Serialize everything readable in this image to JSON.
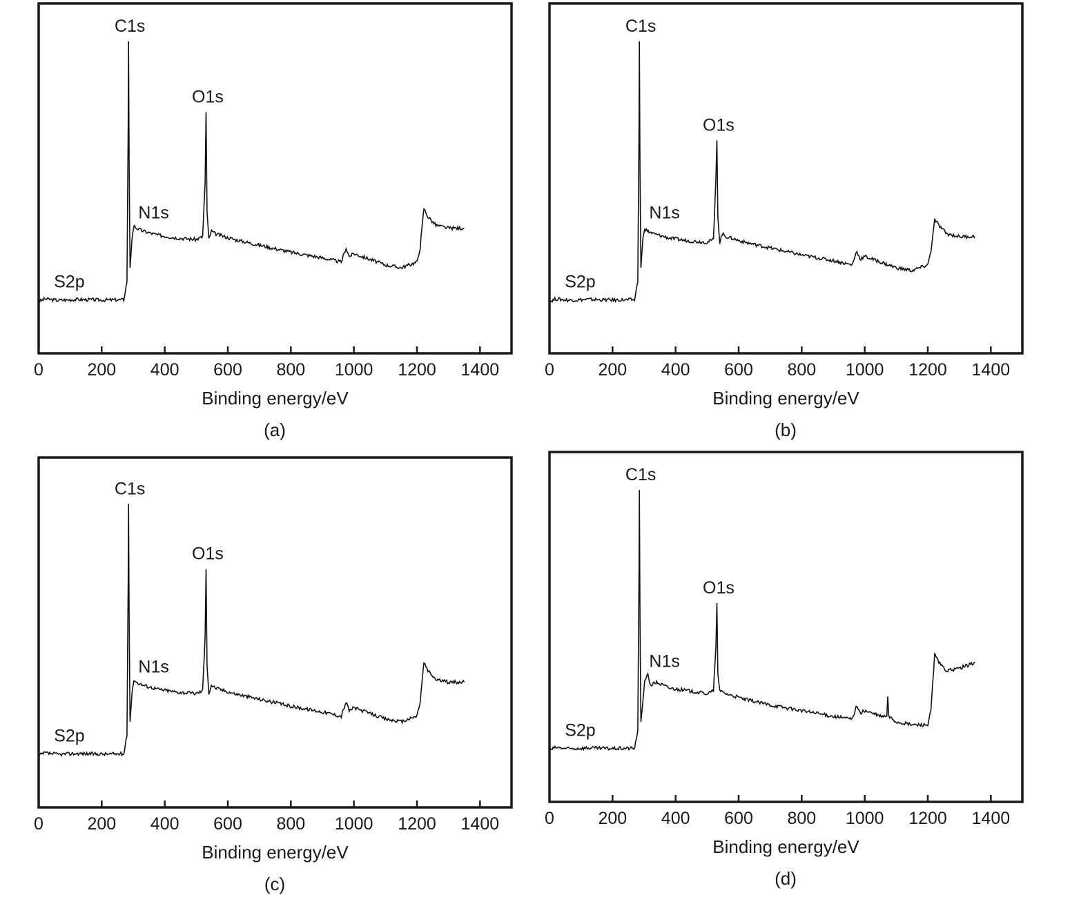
{
  "chart_data": [
    {
      "type": "line",
      "caption": "(a)",
      "xlabel": "Binding energy/eV",
      "ylabel": "",
      "xlim": [
        0,
        1500
      ],
      "xticks": [
        0,
        200,
        400,
        600,
        800,
        1000,
        1200,
        1400
      ],
      "grid": false,
      "legend": "none",
      "annotations": [
        {
          "text": "S2p",
          "x": 163
        },
        {
          "text": "C1s",
          "x": 285
        },
        {
          "text": "N1s",
          "x": 400
        },
        {
          "text": "O1s",
          "x": 532
        }
      ],
      "series": [
        {
          "x": [
            0,
            20,
            60,
            120,
            200,
            270,
            280,
            284,
            285,
            287,
            290,
            296,
            302,
            310,
            330,
            380,
            440,
            500,
            520,
            528,
            531,
            534,
            540,
            548,
            560,
            620,
            700,
            800,
            900,
            960,
            975,
            985,
            1000,
            1050,
            1100,
            1150,
            1200,
            1210,
            1222,
            1235,
            1260,
            1300,
            1350
          ],
          "y": [
            0.08,
            0.09,
            0.085,
            0.088,
            0.086,
            0.087,
            0.15,
            0.7,
            1.0,
            0.55,
            0.2,
            0.3,
            0.35,
            0.34,
            0.33,
            0.315,
            0.305,
            0.3,
            0.31,
            0.5,
            0.75,
            0.4,
            0.3,
            0.33,
            0.32,
            0.3,
            0.28,
            0.255,
            0.235,
            0.22,
            0.27,
            0.24,
            0.25,
            0.23,
            0.21,
            0.2,
            0.22,
            0.27,
            0.41,
            0.38,
            0.35,
            0.34,
            0.34
          ]
        }
      ]
    },
    {
      "type": "line",
      "caption": "(b)",
      "xlabel": "Binding energy/eV",
      "ylabel": "",
      "xlim": [
        0,
        1500
      ],
      "xticks": [
        0,
        200,
        400,
        600,
        800,
        1000,
        1200,
        1400
      ],
      "grid": false,
      "legend": "none",
      "annotations": [
        {
          "text": "S2p",
          "x": 163
        },
        {
          "text": "C1s",
          "x": 285
        },
        {
          "text": "N1s",
          "x": 400
        },
        {
          "text": "O1s",
          "x": 532
        }
      ],
      "series": [
        {
          "x": [
            0,
            20,
            60,
            120,
            200,
            270,
            280,
            284,
            285,
            287,
            290,
            296,
            302,
            310,
            330,
            380,
            440,
            500,
            520,
            528,
            531,
            534,
            540,
            548,
            560,
            620,
            700,
            800,
            900,
            960,
            975,
            985,
            1000,
            1050,
            1100,
            1150,
            1200,
            1210,
            1222,
            1235,
            1260,
            1300,
            1350
          ],
          "y": [
            0.08,
            0.09,
            0.085,
            0.088,
            0.086,
            0.087,
            0.15,
            0.7,
            1.0,
            0.55,
            0.2,
            0.3,
            0.34,
            0.33,
            0.32,
            0.305,
            0.295,
            0.29,
            0.3,
            0.52,
            0.65,
            0.38,
            0.29,
            0.32,
            0.31,
            0.29,
            0.27,
            0.245,
            0.225,
            0.21,
            0.26,
            0.23,
            0.24,
            0.22,
            0.2,
            0.19,
            0.21,
            0.26,
            0.37,
            0.35,
            0.32,
            0.31,
            0.31
          ]
        }
      ]
    },
    {
      "type": "line",
      "caption": "(c)",
      "xlabel": "Binding energy/eV",
      "ylabel": "",
      "xlim": [
        0,
        1500
      ],
      "xticks": [
        0,
        200,
        400,
        600,
        800,
        1000,
        1200,
        1400
      ],
      "grid": false,
      "legend": "none",
      "annotations": [
        {
          "text": "S2p",
          "x": 163
        },
        {
          "text": "C1s",
          "x": 285
        },
        {
          "text": "N1s",
          "x": 400
        },
        {
          "text": "O1s",
          "x": 532
        }
      ],
      "series": [
        {
          "x": [
            0,
            20,
            60,
            120,
            200,
            270,
            280,
            284,
            285,
            287,
            290,
            296,
            302,
            310,
            330,
            380,
            440,
            500,
            520,
            528,
            531,
            534,
            540,
            548,
            560,
            620,
            700,
            800,
            900,
            960,
            975,
            985,
            1000,
            1050,
            1100,
            1150,
            1200,
            1210,
            1222,
            1235,
            1260,
            1300,
            1350
          ],
          "y": [
            0.08,
            0.09,
            0.085,
            0.088,
            0.086,
            0.087,
            0.15,
            0.7,
            0.97,
            0.55,
            0.2,
            0.3,
            0.35,
            0.34,
            0.33,
            0.315,
            0.305,
            0.3,
            0.31,
            0.5,
            0.74,
            0.4,
            0.3,
            0.33,
            0.32,
            0.3,
            0.28,
            0.255,
            0.235,
            0.22,
            0.27,
            0.24,
            0.25,
            0.23,
            0.21,
            0.2,
            0.22,
            0.27,
            0.41,
            0.38,
            0.35,
            0.34,
            0.34
          ]
        }
      ]
    },
    {
      "type": "line",
      "caption": "(d)",
      "xlabel": "Binding energy/eV",
      "ylabel": "",
      "xlim": [
        0,
        1500
      ],
      "xticks": [
        0,
        200,
        400,
        600,
        800,
        1000,
        1200,
        1400
      ],
      "grid": false,
      "legend": "none",
      "annotations": [
        {
          "text": "S2p",
          "x": 163
        },
        {
          "text": "C1s",
          "x": 285
        },
        {
          "text": "N1s",
          "x": 400
        },
        {
          "text": "O1s",
          "x": 532
        }
      ],
      "series": [
        {
          "x": [
            0,
            20,
            60,
            120,
            200,
            270,
            280,
            284,
            285,
            287,
            290,
            296,
            302,
            312,
            320,
            340,
            380,
            440,
            500,
            520,
            528,
            531,
            534,
            540,
            560,
            620,
            700,
            800,
            900,
            960,
            975,
            985,
            1000,
            1050,
            1070,
            1073,
            1076,
            1100,
            1150,
            1200,
            1210,
            1222,
            1235,
            1260,
            1300,
            1350
          ],
          "y": [
            0.08,
            0.09,
            0.085,
            0.088,
            0.086,
            0.087,
            0.15,
            0.72,
            1.0,
            0.55,
            0.18,
            0.25,
            0.32,
            0.35,
            0.31,
            0.32,
            0.3,
            0.29,
            0.28,
            0.29,
            0.45,
            0.6,
            0.35,
            0.29,
            0.28,
            0.26,
            0.24,
            0.22,
            0.2,
            0.19,
            0.24,
            0.21,
            0.22,
            0.2,
            0.2,
            0.27,
            0.2,
            0.18,
            0.17,
            0.17,
            0.22,
            0.42,
            0.39,
            0.36,
            0.37,
            0.39
          ]
        }
      ]
    }
  ]
}
